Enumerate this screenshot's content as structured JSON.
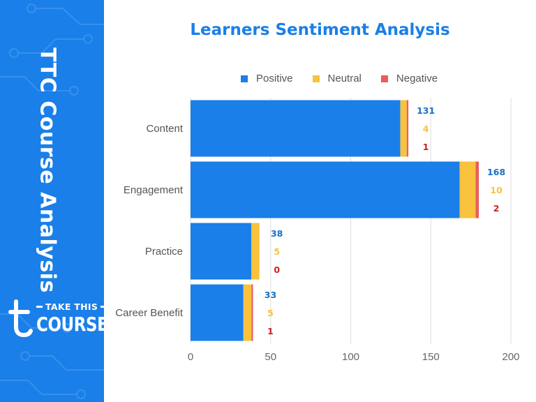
{
  "sidebar": {
    "vertical_title": "TTC Course Analysis",
    "logo": {
      "line1": "TAKE THIS",
      "line2": "COURSE"
    },
    "background_color": "#1a7fe8"
  },
  "chart_data": {
    "type": "bar",
    "orientation": "horizontal",
    "stacked": true,
    "title": "Learners Sentiment Analysis",
    "categories": [
      "Content",
      "Engagement",
      "Practice",
      "Career Benefit"
    ],
    "series": [
      {
        "name": "Positive",
        "color": "#1a7fe8",
        "values": [
          131,
          168,
          38,
          33
        ]
      },
      {
        "name": "Neutral",
        "color": "#f9c23c",
        "values": [
          4,
          10,
          5,
          5
        ]
      },
      {
        "name": "Negative",
        "color": "#e95d5d",
        "values": [
          1,
          2,
          0,
          1
        ]
      }
    ],
    "data_label_colors": [
      "#1a6fc4",
      "#f9c23c",
      "#cc1f1f"
    ],
    "xlim": [
      0,
      200
    ],
    "xticks": [
      0,
      50,
      100,
      150,
      200
    ],
    "xlabel": "",
    "ylabel": "",
    "grid": "vertical",
    "legend_position": "top"
  }
}
